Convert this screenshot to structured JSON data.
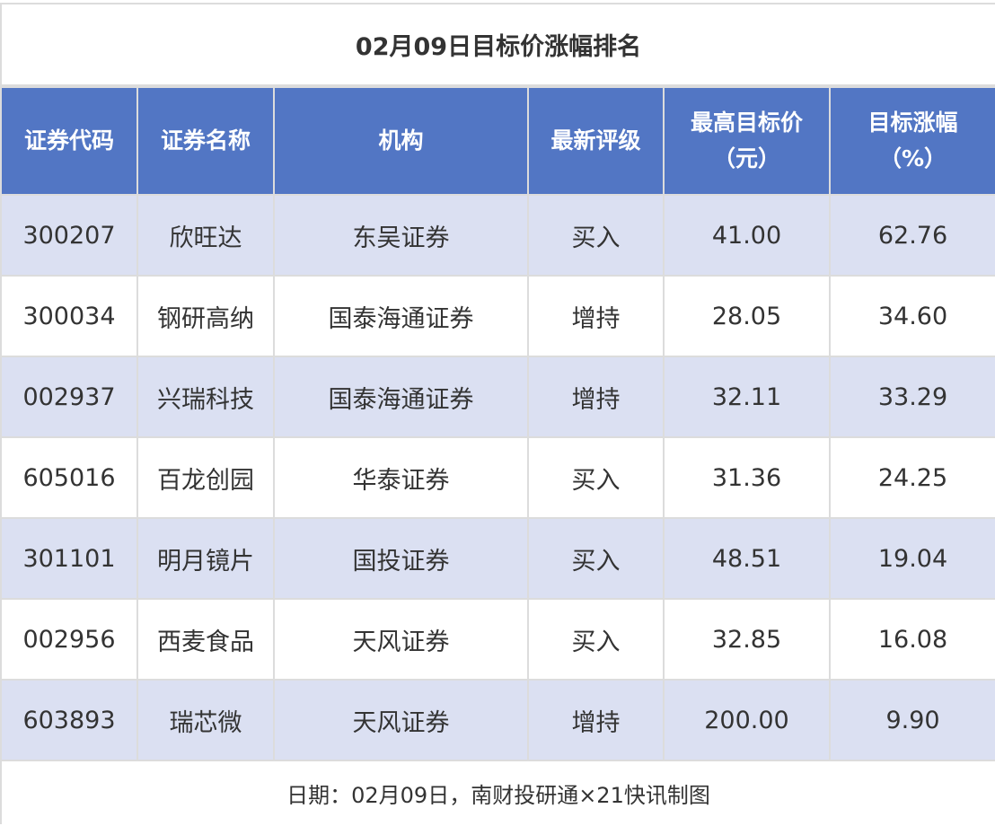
{
  "title": "02月09日目标价涨幅排名",
  "columns": [
    "证券代码",
    "证券名称",
    "机构",
    "最新评级",
    "最高目标价\n（元）",
    "目标涨幅\n（%）"
  ],
  "rows": [
    [
      "300207",
      "欣旺达",
      "东吴证券",
      "买入",
      "41.00",
      "62.76"
    ],
    [
      "300034",
      "钢研高纳",
      "国泰海通证券",
      "增持",
      "28.05",
      "34.60"
    ],
    [
      "002937",
      "兴瑞科技",
      "国泰海通证券",
      "增持",
      "32.11",
      "33.29"
    ],
    [
      "605016",
      "百龙创园",
      "华泰证券",
      "买入",
      "31.36",
      "24.25"
    ],
    [
      "301101",
      "明月镜片",
      "国投证券",
      "买入",
      "48.51",
      "19.04"
    ],
    [
      "002956",
      "西麦食品",
      "天风证券",
      "买入",
      "32.85",
      "16.08"
    ],
    [
      "603893",
      "瑞芯微",
      "天风证券",
      "增持",
      "200.00",
      "9.90"
    ]
  ],
  "footer": "日期：02月09日，南财投研通×21快讯制图",
  "colors": {
    "header_bg": "#5276c4",
    "stripe_bg": "#dbe0f2",
    "border": "#dcdcdc"
  }
}
